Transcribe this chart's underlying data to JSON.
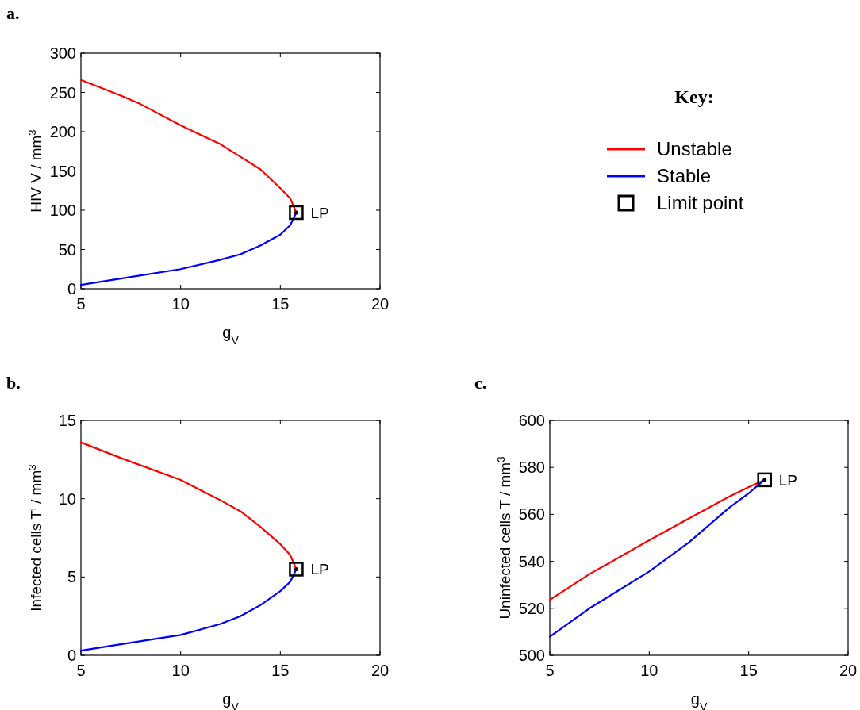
{
  "chart_data": [
    {
      "type": "line",
      "title": "a.",
      "xlabel": "g$_{V}$",
      "ylabel": "HIV V / mm$^{3}$",
      "xlim": [
        5,
        20
      ],
      "xticks": [
        5,
        10,
        15,
        20
      ],
      "ylim": [
        0,
        300
      ],
      "yticks": [
        0,
        50,
        100,
        150,
        200,
        250,
        300
      ],
      "legend": "right",
      "legend_title": "Key:",
      "grid": false,
      "series": [
        {
          "name": "Unstable",
          "color": "#ff0000",
          "x": [
            5,
            7,
            8,
            10,
            12,
            13,
            14,
            15,
            15.5,
            15.8
          ],
          "values": [
            266,
            246,
            235,
            208,
            184,
            168,
            152,
            128,
            115,
            97
          ]
        },
        {
          "name": "Stable",
          "color": "#0000ff",
          "x": [
            5,
            7,
            10,
            12,
            13,
            14,
            15,
            15.5,
            15.8
          ],
          "values": [
            5,
            13,
            25,
            37,
            44,
            55,
            69,
            81,
            97
          ]
        },
        {
          "name": "Limit point",
          "type": "scatter",
          "marker": "square",
          "color": "#000000",
          "x": [
            15.8
          ],
          "values": [
            97
          ]
        }
      ],
      "annotations": [
        "LP"
      ]
    },
    {
      "type": "line",
      "title": "b.",
      "xlabel": "g$_{V}$",
      "ylabel": "Infected cells T$^{i}$ / mm$^{3}$",
      "xlim": [
        5,
        20
      ],
      "xticks": [
        5,
        10,
        15,
        20
      ],
      "ylim": [
        0,
        15
      ],
      "yticks": [
        0,
        5,
        10,
        15
      ],
      "grid": false,
      "series": [
        {
          "color": "#ff0000",
          "x": [
            5,
            7,
            10,
            12,
            13,
            14,
            15,
            15.5,
            15.8
          ],
          "values": [
            13.6,
            12.6,
            11.2,
            9.9,
            9.2,
            8.2,
            7.1,
            6.4,
            5.5
          ]
        },
        {
          "color": "#0000ff",
          "x": [
            5,
            7,
            10,
            12,
            13,
            14,
            15,
            15.5,
            15.8
          ],
          "values": [
            0.3,
            0.7,
            1.3,
            2.0,
            2.5,
            3.2,
            4.1,
            4.7,
            5.5
          ]
        },
        {
          "type": "scatter",
          "marker": "square",
          "color": "#000000",
          "x": [
            15.8
          ],
          "values": [
            5.5
          ]
        }
      ],
      "annotations": [
        "LP"
      ]
    },
    {
      "type": "line",
      "title": "c.",
      "xlabel": "g$_{V}$",
      "ylabel": "Uninfected cells T / mm$^{3}$",
      "xlim": [
        5,
        20
      ],
      "xticks": [
        5,
        10,
        15,
        20
      ],
      "ylim": [
        500,
        600
      ],
      "yticks": [
        500,
        520,
        540,
        560,
        580,
        600
      ],
      "grid": false,
      "series": [
        {
          "color": "#ff0000",
          "x": [
            5,
            7,
            10,
            12,
            14,
            15,
            15.8
          ],
          "values": [
            523.6,
            534.6,
            549,
            558.3,
            567.5,
            571.6,
            574.7
          ]
        },
        {
          "color": "#0000ff",
          "x": [
            5,
            7,
            10,
            12,
            14,
            15,
            15.8
          ],
          "values": [
            507.9,
            520,
            535.7,
            548.1,
            562.7,
            569,
            574.7
          ]
        },
        {
          "type": "scatter",
          "marker": "square",
          "color": "#000000",
          "x": [
            15.8
          ],
          "values": [
            574.7
          ]
        }
      ],
      "annotations": [
        "LP"
      ]
    }
  ]
}
